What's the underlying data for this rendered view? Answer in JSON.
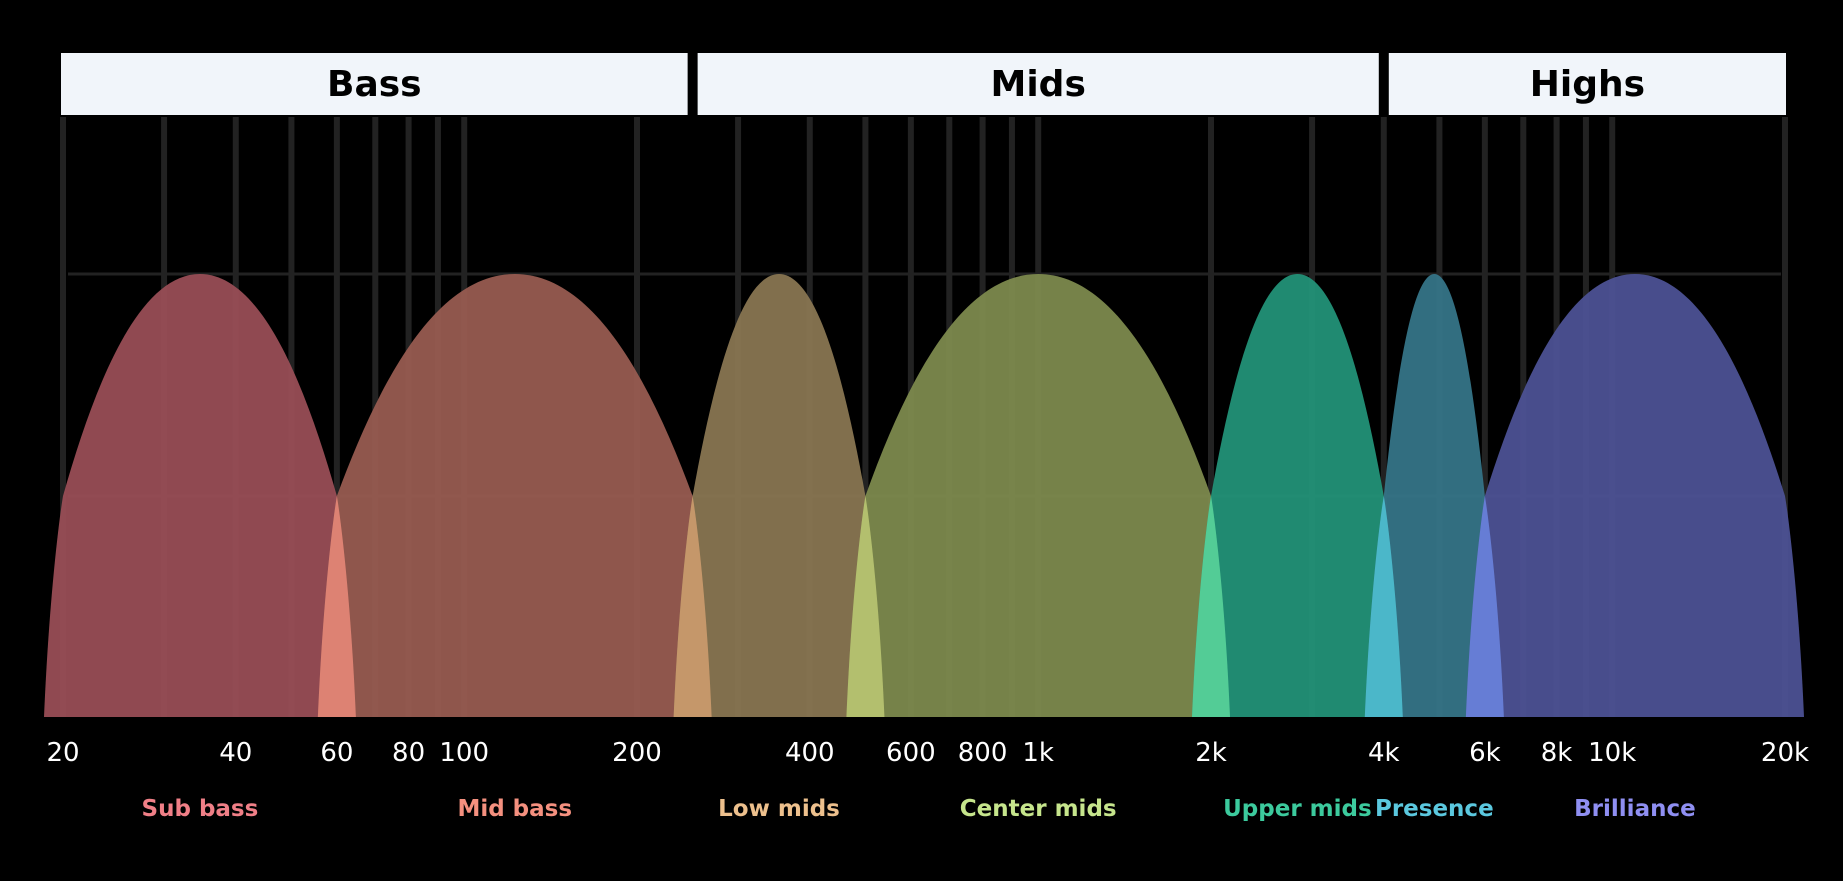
{
  "ranges": [
    {
      "label": "Bass",
      "from": 20,
      "to": 250
    },
    {
      "label": "Mids",
      "from": 250,
      "to": 4000
    },
    {
      "label": "Highs",
      "from": 4000,
      "to": 20000
    }
  ],
  "gridlines": [
    20,
    30,
    40,
    50,
    60,
    70,
    80,
    90,
    100,
    200,
    300,
    400,
    500,
    600,
    700,
    800,
    900,
    1000,
    2000,
    3000,
    4000,
    5000,
    6000,
    7000,
    8000,
    9000,
    10000,
    20000
  ],
  "x_ticks": [
    {
      "label": "20",
      "value": 20
    },
    {
      "label": "40",
      "value": 40
    },
    {
      "label": "60",
      "value": 60
    },
    {
      "label": "80",
      "value": 80
    },
    {
      "label": "100",
      "value": 100
    },
    {
      "label": "200",
      "value": 200
    },
    {
      "label": "400",
      "value": 400
    },
    {
      "label": "600",
      "value": 600
    },
    {
      "label": "800",
      "value": 800
    },
    {
      "label": "1k",
      "value": 1000
    },
    {
      "label": "2k",
      "value": 2000
    },
    {
      "label": "4k",
      "value": 4000
    },
    {
      "label": "6k",
      "value": 6000
    },
    {
      "label": "8k",
      "value": 8000
    },
    {
      "label": "10k",
      "value": 10000
    },
    {
      "label": "20k",
      "value": 20000
    }
  ],
  "bands": [
    {
      "name": "Sub bass",
      "from": 20,
      "to": 60,
      "color": "#9b4f57",
      "overlap": "#e08575",
      "label_color": "#f07f87"
    },
    {
      "name": "Mid bass",
      "from": 60,
      "to": 250,
      "color": "#9a5d52",
      "overlap": "#c8996c",
      "label_color": "#f4907f"
    },
    {
      "name": "Low mids",
      "from": 250,
      "to": 500,
      "color": "#8b7753",
      "overlap": "#b6c270",
      "label_color": "#edc08d"
    },
    {
      "name": "Center mids",
      "from": 500,
      "to": 2000,
      "color": "#7f8c4f",
      "overlap": "#55cf98",
      "label_color": "#c6e58c"
    },
    {
      "name": "Upper mids",
      "from": 2000,
      "to": 4000,
      "color": "#22957a",
      "overlap": "#4dbacc",
      "label_color": "#3cca9d"
    },
    {
      "name": "Presence",
      "from": 4000,
      "to": 6000,
      "color": "#36768a",
      "overlap": "#6780d8",
      "label_color": "#5bc8df"
    },
    {
      "name": "Brilliance",
      "from": 6000,
      "to": 20000,
      "color": "#4e5397",
      "overlap": null,
      "label_color": "#8f8ff2"
    }
  ]
}
